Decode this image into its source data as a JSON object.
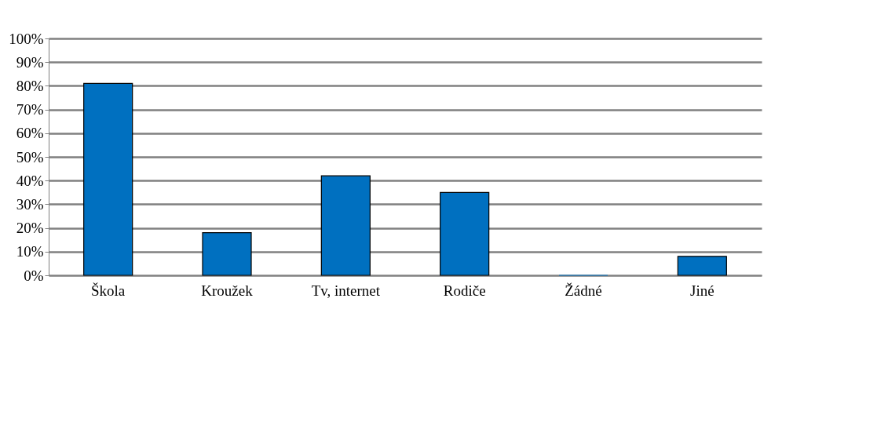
{
  "chart_data": {
    "type": "bar",
    "categories": [
      "Škola",
      "Kroužek",
      "Tv, internet",
      "Rodiče",
      "Žádné",
      "Jiné"
    ],
    "values": [
      81,
      18,
      42,
      35,
      0,
      8
    ],
    "color": "#0070c0",
    "ylim": [
      0,
      100
    ],
    "yticks": [
      {
        "value": 0,
        "label": "0%"
      },
      {
        "value": 10,
        "label": "10%"
      },
      {
        "value": 20,
        "label": "20%"
      },
      {
        "value": 30,
        "label": "30%"
      },
      {
        "value": 40,
        "label": "40%"
      },
      {
        "value": 50,
        "label": "50%"
      },
      {
        "value": 60,
        "label": "60%"
      },
      {
        "value": 70,
        "label": "70%"
      },
      {
        "value": 80,
        "label": "80%"
      },
      {
        "value": 90,
        "label": "90%"
      },
      {
        "value": 100,
        "label": "100%"
      }
    ],
    "grid": "y"
  }
}
